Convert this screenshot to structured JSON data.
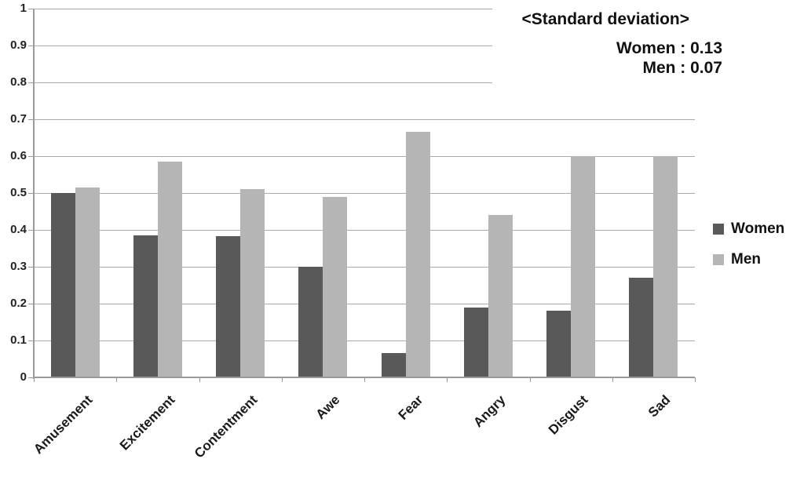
{
  "chart_data": {
    "type": "bar",
    "title": "",
    "categories": [
      "Amusement",
      "Excitement",
      "Contentment",
      "Awe",
      "Fear",
      "Angry",
      "Disgust",
      "Sad"
    ],
    "series": [
      {
        "name": "Women",
        "color": "#595959",
        "values": [
          0.5,
          0.385,
          0.383,
          0.3,
          0.065,
          0.19,
          0.18,
          0.27
        ]
      },
      {
        "name": "Men",
        "color": "#b5b5b5",
        "values": [
          0.515,
          0.585,
          0.51,
          0.49,
          0.665,
          0.44,
          0.6,
          0.6
        ]
      }
    ],
    "xlabel": "",
    "ylabel": "",
    "ylim": [
      0,
      1
    ],
    "ytick_step": 0.1,
    "ytick_labels": [
      "0",
      "0.1",
      "0.2",
      "0.3",
      "0.4",
      "0.5",
      "0.6",
      "0.7",
      "0.8",
      "0.9",
      "1"
    ],
    "grid": "horizontal",
    "legend_position": "right",
    "annotation": {
      "title": "<Standard deviation>",
      "line1": "Women : 0.13",
      "line2": "Men : 0.07"
    },
    "colors": {
      "axis": "#9a9a9a",
      "gridline": "#ababab",
      "text": "#111111"
    }
  }
}
